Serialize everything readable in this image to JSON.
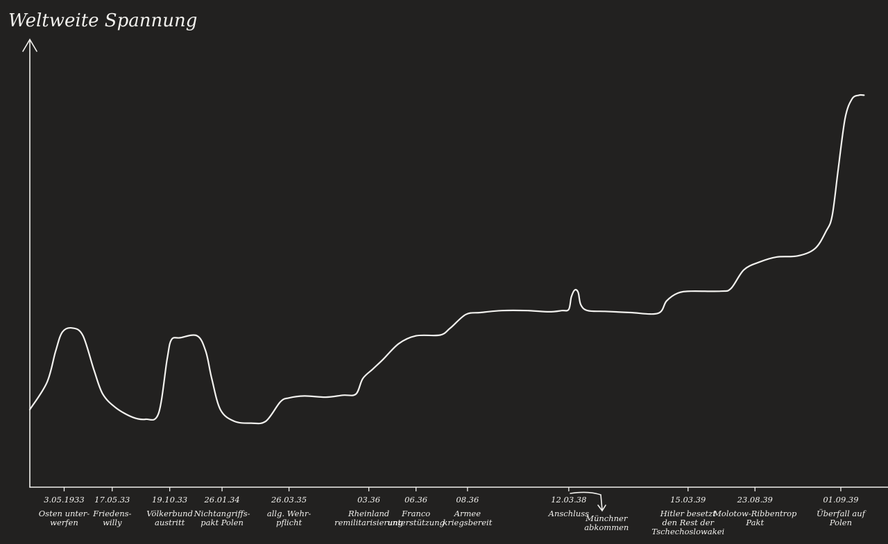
{
  "chart_data": {
    "type": "line",
    "title": "Weltweite Spannung",
    "xlabel": "",
    "ylabel": "Weltweite Spannung",
    "grid": false,
    "ylim": [
      0,
      100
    ],
    "series": [
      {
        "name": "",
        "points": [
          [
            0.0,
            20.0
          ],
          [
            0.02,
            27.0
          ],
          [
            0.03,
            35.0
          ],
          [
            0.038,
            40.0
          ],
          [
            0.05,
            41.0
          ],
          [
            0.062,
            39.0
          ],
          [
            0.075,
            30.0
          ],
          [
            0.085,
            24.0
          ],
          [
            0.1,
            20.5
          ],
          [
            0.12,
            18.0
          ],
          [
            0.135,
            17.5
          ],
          [
            0.15,
            19.0
          ],
          [
            0.16,
            33.0
          ],
          [
            0.165,
            38.0
          ],
          [
            0.175,
            38.5
          ],
          [
            0.195,
            39.0
          ],
          [
            0.205,
            35.0
          ],
          [
            0.212,
            28.0
          ],
          [
            0.222,
            20.0
          ],
          [
            0.238,
            17.0
          ],
          [
            0.258,
            16.5
          ],
          [
            0.275,
            17.0
          ],
          [
            0.292,
            22.0
          ],
          [
            0.302,
            23.0
          ],
          [
            0.32,
            23.5
          ],
          [
            0.345,
            23.2
          ],
          [
            0.365,
            23.7
          ],
          [
            0.38,
            24.0
          ],
          [
            0.388,
            28.0
          ],
          [
            0.4,
            30.5
          ],
          [
            0.412,
            33.0
          ],
          [
            0.43,
            37.0
          ],
          [
            0.45,
            39.0
          ],
          [
            0.478,
            39.2
          ],
          [
            0.49,
            41.0
          ],
          [
            0.508,
            44.5
          ],
          [
            0.525,
            45.0
          ],
          [
            0.55,
            45.5
          ],
          [
            0.58,
            45.5
          ],
          [
            0.605,
            45.2
          ],
          [
            0.62,
            45.5
          ],
          [
            0.628,
            45.8
          ],
          [
            0.631,
            49.0
          ],
          [
            0.635,
            50.8
          ],
          [
            0.639,
            50.2
          ],
          [
            0.642,
            47.0
          ],
          [
            0.65,
            45.5
          ],
          [
            0.67,
            45.3
          ],
          [
            0.7,
            45.0
          ],
          [
            0.732,
            44.8
          ],
          [
            0.742,
            48.0
          ],
          [
            0.755,
            50.0
          ],
          [
            0.77,
            50.5
          ],
          [
            0.805,
            50.5
          ],
          [
            0.817,
            51.2
          ],
          [
            0.832,
            56.0
          ],
          [
            0.85,
            58.0
          ],
          [
            0.87,
            59.3
          ],
          [
            0.895,
            59.6
          ],
          [
            0.915,
            61.5
          ],
          [
            0.928,
            66.0
          ],
          [
            0.935,
            70.0
          ],
          [
            0.942,
            82.0
          ],
          [
            0.95,
            95.0
          ],
          [
            0.958,
            100.0
          ],
          [
            0.966,
            101.0
          ],
          [
            0.972,
            101.0
          ]
        ]
      }
    ],
    "annotations": [
      {
        "x": 0.04,
        "date": "3.05.1933",
        "label": "Osten unter-\nwerfen"
      },
      {
        "x": 0.096,
        "date": "17.05.33",
        "label": "Friedens-\nwilly"
      },
      {
        "x": 0.163,
        "date": "19.10.33",
        "label": "Völkerbund\naustritt"
      },
      {
        "x": 0.224,
        "date": "26.01.34",
        "label": "Nichtangriffs-\npakt Polen"
      },
      {
        "x": 0.302,
        "date": "26.03.35",
        "label": "allg. Wehr-\npflicht"
      },
      {
        "x": 0.395,
        "date": "03.36",
        "label": "Rheinland\nremilitarisierung"
      },
      {
        "x": 0.45,
        "date": "06.36",
        "label": "Franco\nunterstützung"
      },
      {
        "x": 0.51,
        "date": "08.36",
        "label": "Armee\nkriegsbereit"
      },
      {
        "x": 0.628,
        "date": "12.03.38",
        "label": "Anschluss"
      },
      {
        "x": 0.672,
        "date": "",
        "label": "Münchner\nabkommen"
      },
      {
        "x": 0.767,
        "date": "15.03.39",
        "label": "Hitler besetzt\nden Rest der\nTschechoslowakei"
      },
      {
        "x": 0.845,
        "date": "23.08.39",
        "label": "Molotow-Ribbentrop\nPakt"
      },
      {
        "x": 0.945,
        "date": "01.09.39",
        "label": "Überfall auf\nPolen"
      }
    ]
  }
}
